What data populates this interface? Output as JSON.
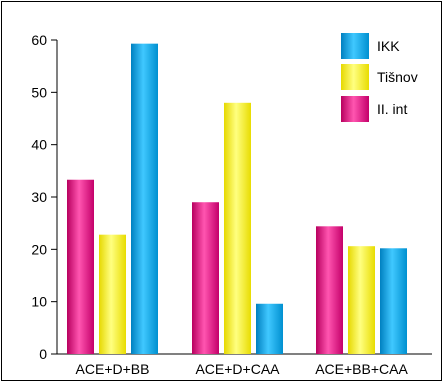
{
  "chart_data": {
    "type": "bar",
    "categories": [
      "ACE+D+BB",
      "ACE+D+CAA",
      "ACE+BB+CAA"
    ],
    "series": [
      {
        "name": "II. int",
        "values": [
          33.3,
          29,
          24.4
        ],
        "color": "#e6007e"
      },
      {
        "name": "Tišnov",
        "values": [
          22.8,
          48,
          20.6
        ],
        "color": "#fff200"
      },
      {
        "name": "IKK",
        "values": [
          59.3,
          9.6,
          20.2
        ],
        "color": "#00a3e0"
      }
    ],
    "ylim": [
      0,
      60
    ],
    "yticks": [
      0,
      10,
      20,
      30,
      40,
      50,
      60
    ],
    "legend_order": [
      "IKK",
      "Tišnov",
      "II. int"
    ],
    "legend_position": "top-right",
    "grid": false
  }
}
